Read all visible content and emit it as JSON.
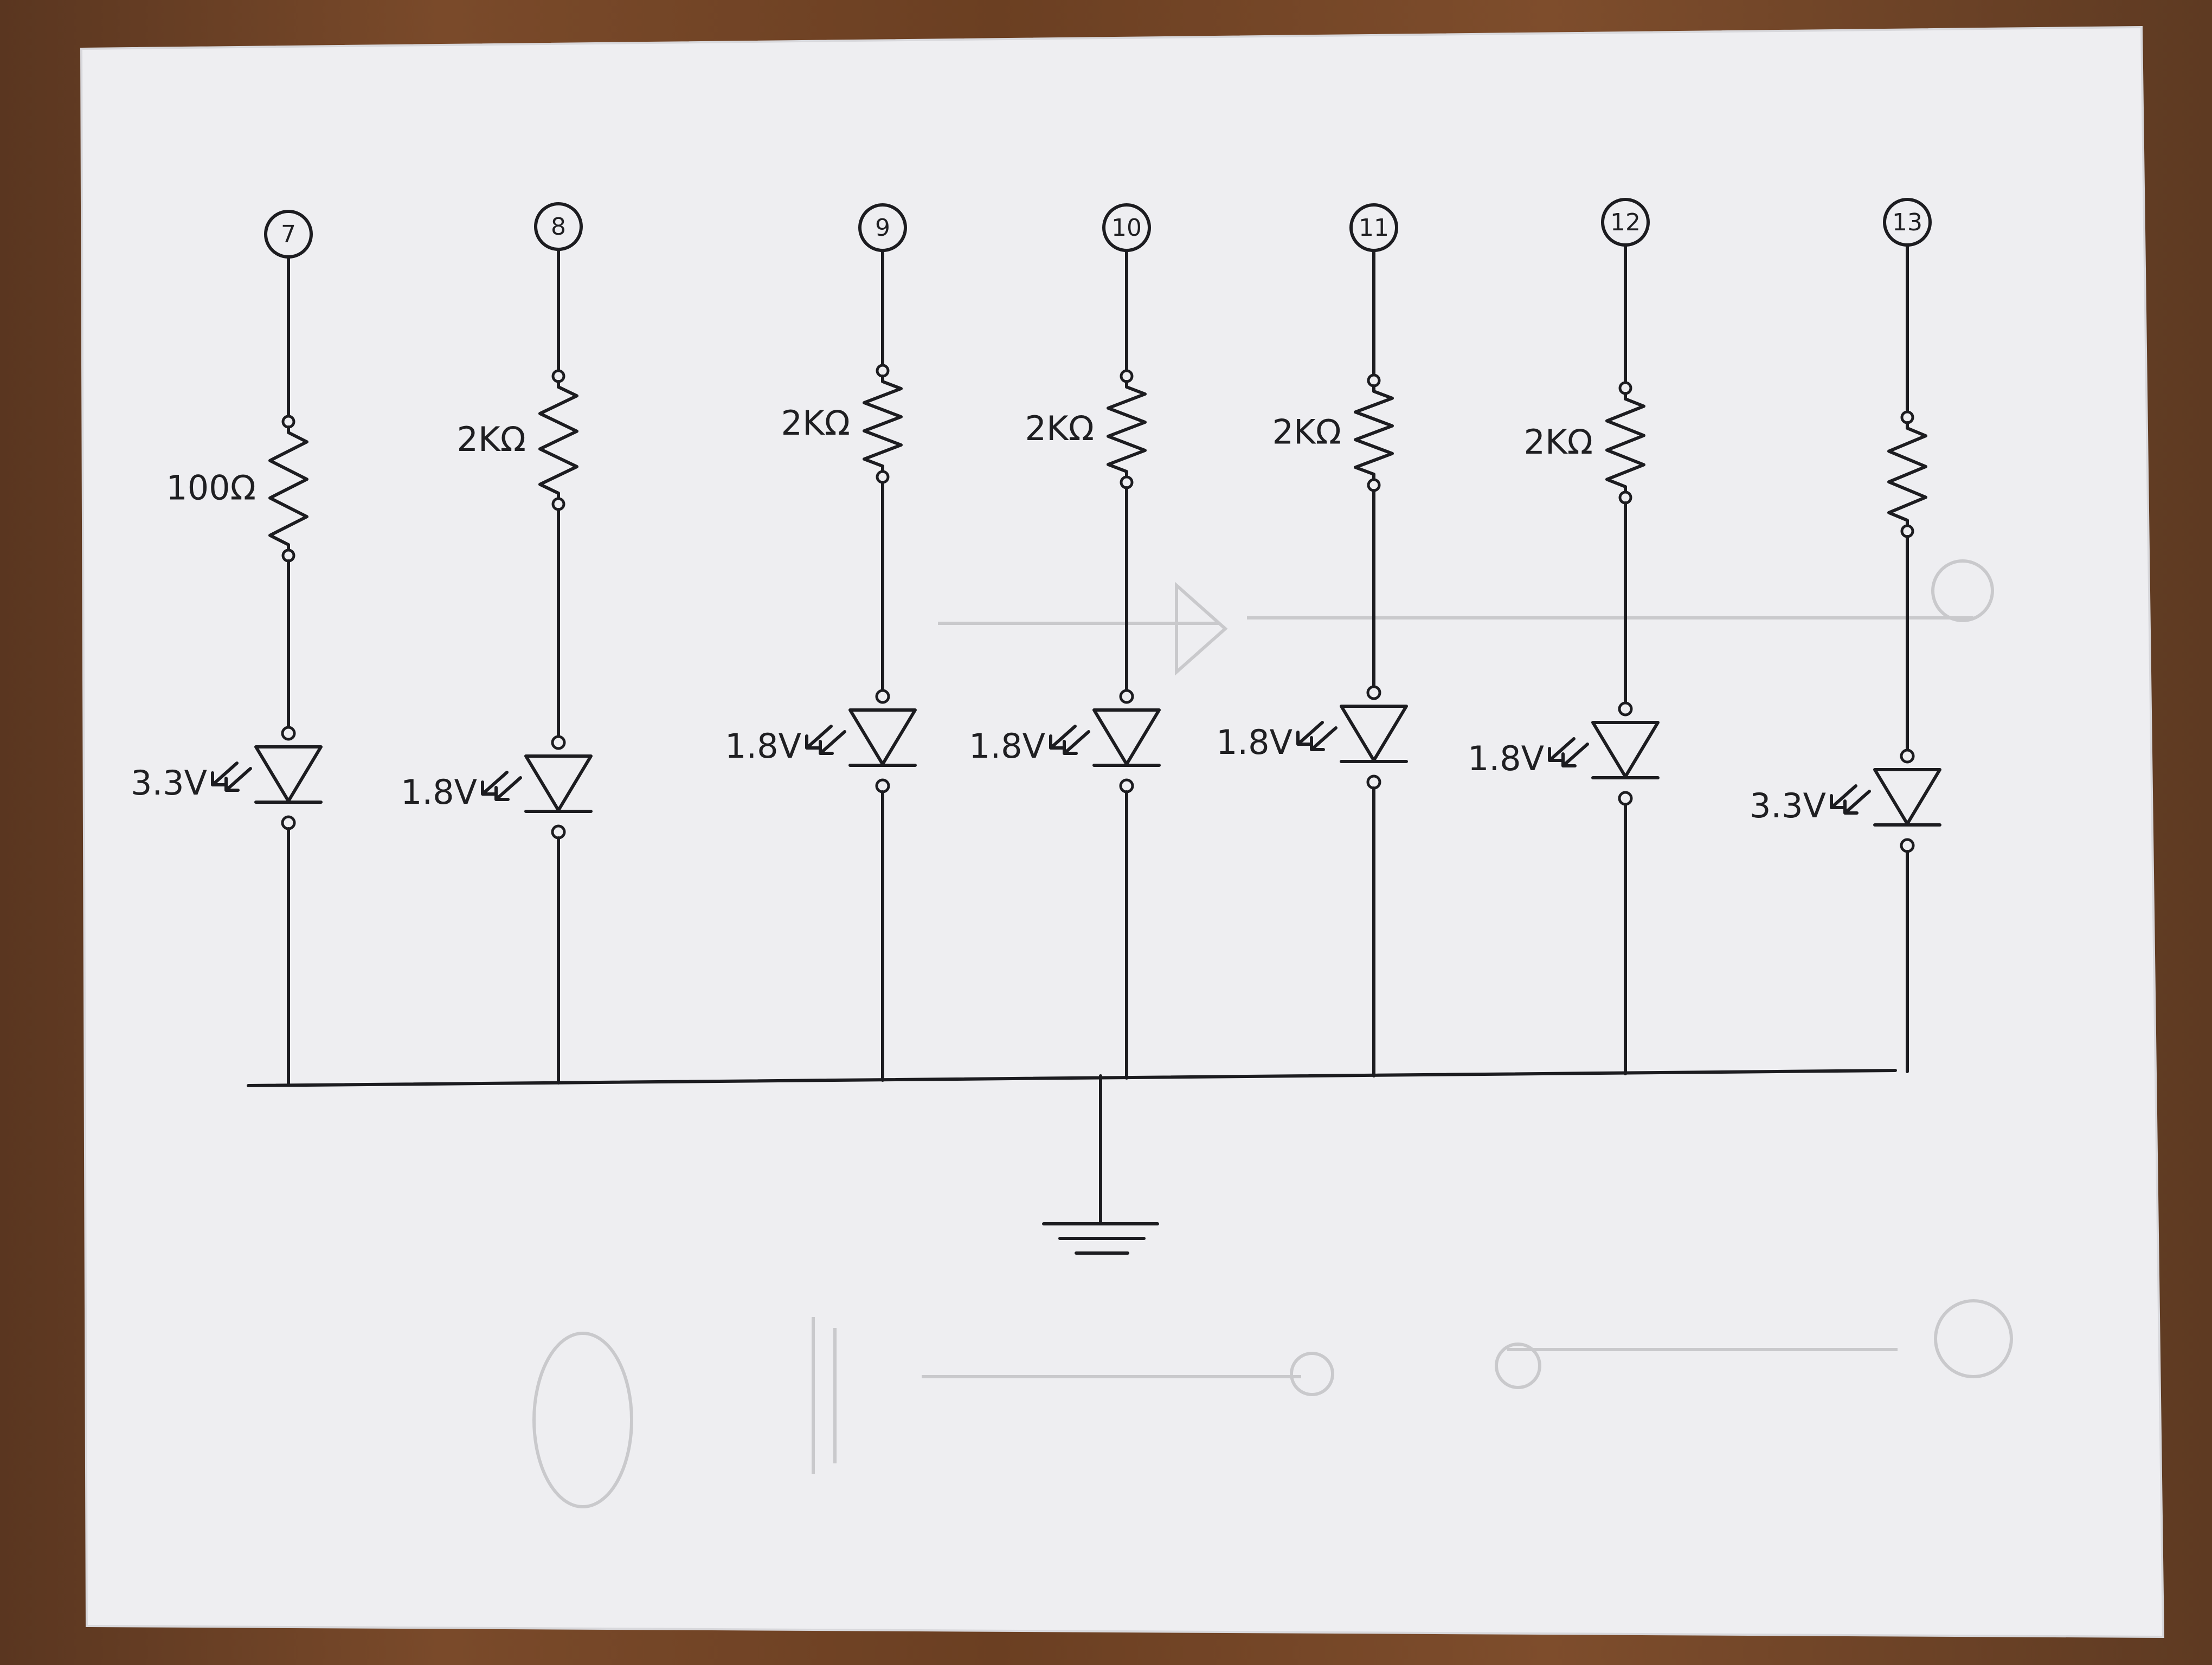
{
  "schematic": {
    "channels": [
      {
        "pin": "7",
        "resistor": "100Ω",
        "led": "3.3V"
      },
      {
        "pin": "8",
        "resistor": "2KΩ",
        "led": "1.8V"
      },
      {
        "pin": "9",
        "resistor": "2KΩ",
        "led": "1.8V"
      },
      {
        "pin": "10",
        "resistor": "2KΩ",
        "led": "1.8V"
      },
      {
        "pin": "11",
        "resistor": "2KΩ",
        "led": "1.8V"
      },
      {
        "pin": "12",
        "resistor": "2KΩ",
        "led": "1.8V"
      },
      {
        "pin": "13",
        "resistor": "",
        "led": "3.3V"
      }
    ],
    "ground_icon": "ground-symbol-icon",
    "colors": {
      "ink": "#1c1c20",
      "paper": "#f1f1f3",
      "desk": "#6b3f22"
    }
  }
}
